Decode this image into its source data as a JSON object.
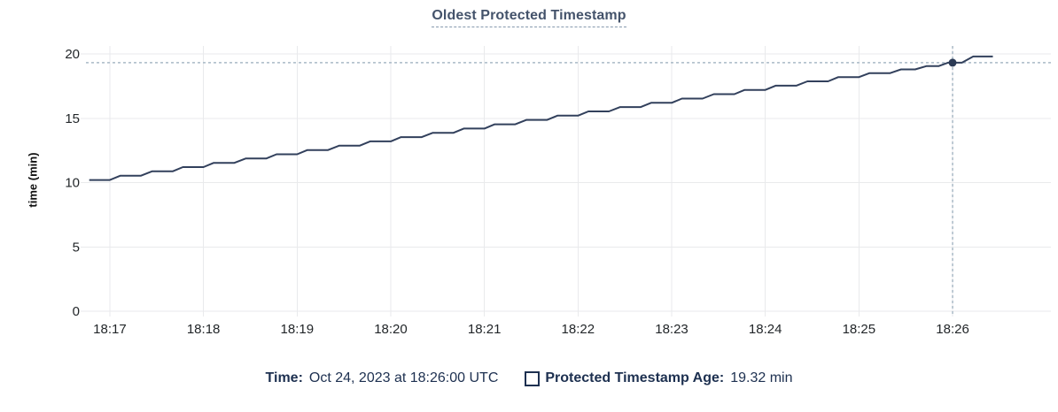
{
  "title": {
    "text": "Oldest Protected Timestamp"
  },
  "legend": {
    "time_label": "Time:",
    "time_value": "Oct 24, 2023 at 18:26:00 UTC",
    "series_label": "Protected Timestamp Age:",
    "series_value": "19.32 min",
    "series_swatch_icon": "empty-square-icon"
  },
  "colors": {
    "title": "#44536b",
    "legend_text": "#1d3050",
    "line": "#32405c",
    "marker": "#2b3a55",
    "grid": "#e9eaec",
    "crosshair": "#a9b9c6",
    "tick_text": "#222629"
  },
  "chart_data": {
    "type": "line",
    "title": "Oldest Protected Timestamp",
    "xlabel": "",
    "ylabel": "time (min)",
    "grid": true,
    "legend_position": "bottom",
    "ylim": [
      0,
      20
    ],
    "xlim": [
      16.745,
      27.05
    ],
    "y_ticks": [
      0,
      5,
      10,
      15,
      20
    ],
    "x_ticks": [
      {
        "t": 17,
        "label": "18:17"
      },
      {
        "t": 18,
        "label": "18:18"
      },
      {
        "t": 19,
        "label": "18:19"
      },
      {
        "t": 20,
        "label": "18:20"
      },
      {
        "t": 21,
        "label": "18:21"
      },
      {
        "t": 22,
        "label": "18:22"
      },
      {
        "t": 23,
        "label": "18:23"
      },
      {
        "t": 24,
        "label": "18:24"
      },
      {
        "t": 25,
        "label": "18:25"
      },
      {
        "t": 26,
        "label": "18:26"
      }
    ],
    "x_unit": "minutes after 18:00 UTC on Oct 24, 2023",
    "series": [
      {
        "name": "Protected Timestamp Age",
        "unit": "min",
        "points": [
          [
            16.78,
            10.2
          ],
          [
            17.0,
            10.2
          ],
          [
            17.11,
            10.53
          ],
          [
            17.33,
            10.53
          ],
          [
            17.45,
            10.87
          ],
          [
            17.67,
            10.87
          ],
          [
            17.78,
            11.2
          ],
          [
            18.0,
            11.2
          ],
          [
            18.11,
            11.53
          ],
          [
            18.33,
            11.53
          ],
          [
            18.45,
            11.87
          ],
          [
            18.67,
            11.87
          ],
          [
            18.78,
            12.2
          ],
          [
            19.0,
            12.2
          ],
          [
            19.11,
            12.53
          ],
          [
            19.33,
            12.53
          ],
          [
            19.45,
            12.87
          ],
          [
            19.67,
            12.87
          ],
          [
            19.78,
            13.2
          ],
          [
            20.0,
            13.2
          ],
          [
            20.11,
            13.53
          ],
          [
            20.33,
            13.53
          ],
          [
            20.45,
            13.87
          ],
          [
            20.67,
            13.87
          ],
          [
            20.78,
            14.2
          ],
          [
            21.0,
            14.2
          ],
          [
            21.11,
            14.53
          ],
          [
            21.33,
            14.53
          ],
          [
            21.45,
            14.87
          ],
          [
            21.67,
            14.87
          ],
          [
            21.78,
            15.2
          ],
          [
            22.0,
            15.2
          ],
          [
            22.11,
            15.53
          ],
          [
            22.33,
            15.53
          ],
          [
            22.45,
            15.87
          ],
          [
            22.67,
            15.87
          ],
          [
            22.78,
            16.2
          ],
          [
            23.0,
            16.2
          ],
          [
            23.11,
            16.53
          ],
          [
            23.33,
            16.53
          ],
          [
            23.45,
            16.87
          ],
          [
            23.67,
            16.87
          ],
          [
            23.78,
            17.2
          ],
          [
            24.0,
            17.2
          ],
          [
            24.11,
            17.53
          ],
          [
            24.33,
            17.53
          ],
          [
            24.45,
            17.87
          ],
          [
            24.67,
            17.87
          ],
          [
            24.78,
            18.2
          ],
          [
            25.0,
            18.2
          ],
          [
            25.11,
            18.5
          ],
          [
            25.33,
            18.5
          ],
          [
            25.45,
            18.8
          ],
          [
            25.6,
            18.8
          ],
          [
            25.72,
            19.05
          ],
          [
            25.85,
            19.05
          ],
          [
            25.95,
            19.32
          ],
          [
            26.1,
            19.32
          ],
          [
            26.22,
            19.8
          ],
          [
            26.43,
            19.8
          ]
        ]
      }
    ],
    "marker": {
      "t": 26.0,
      "value": 19.32,
      "time_text": "Oct 24, 2023 at 18:26:00 UTC",
      "value_text": "19.32 min"
    }
  }
}
